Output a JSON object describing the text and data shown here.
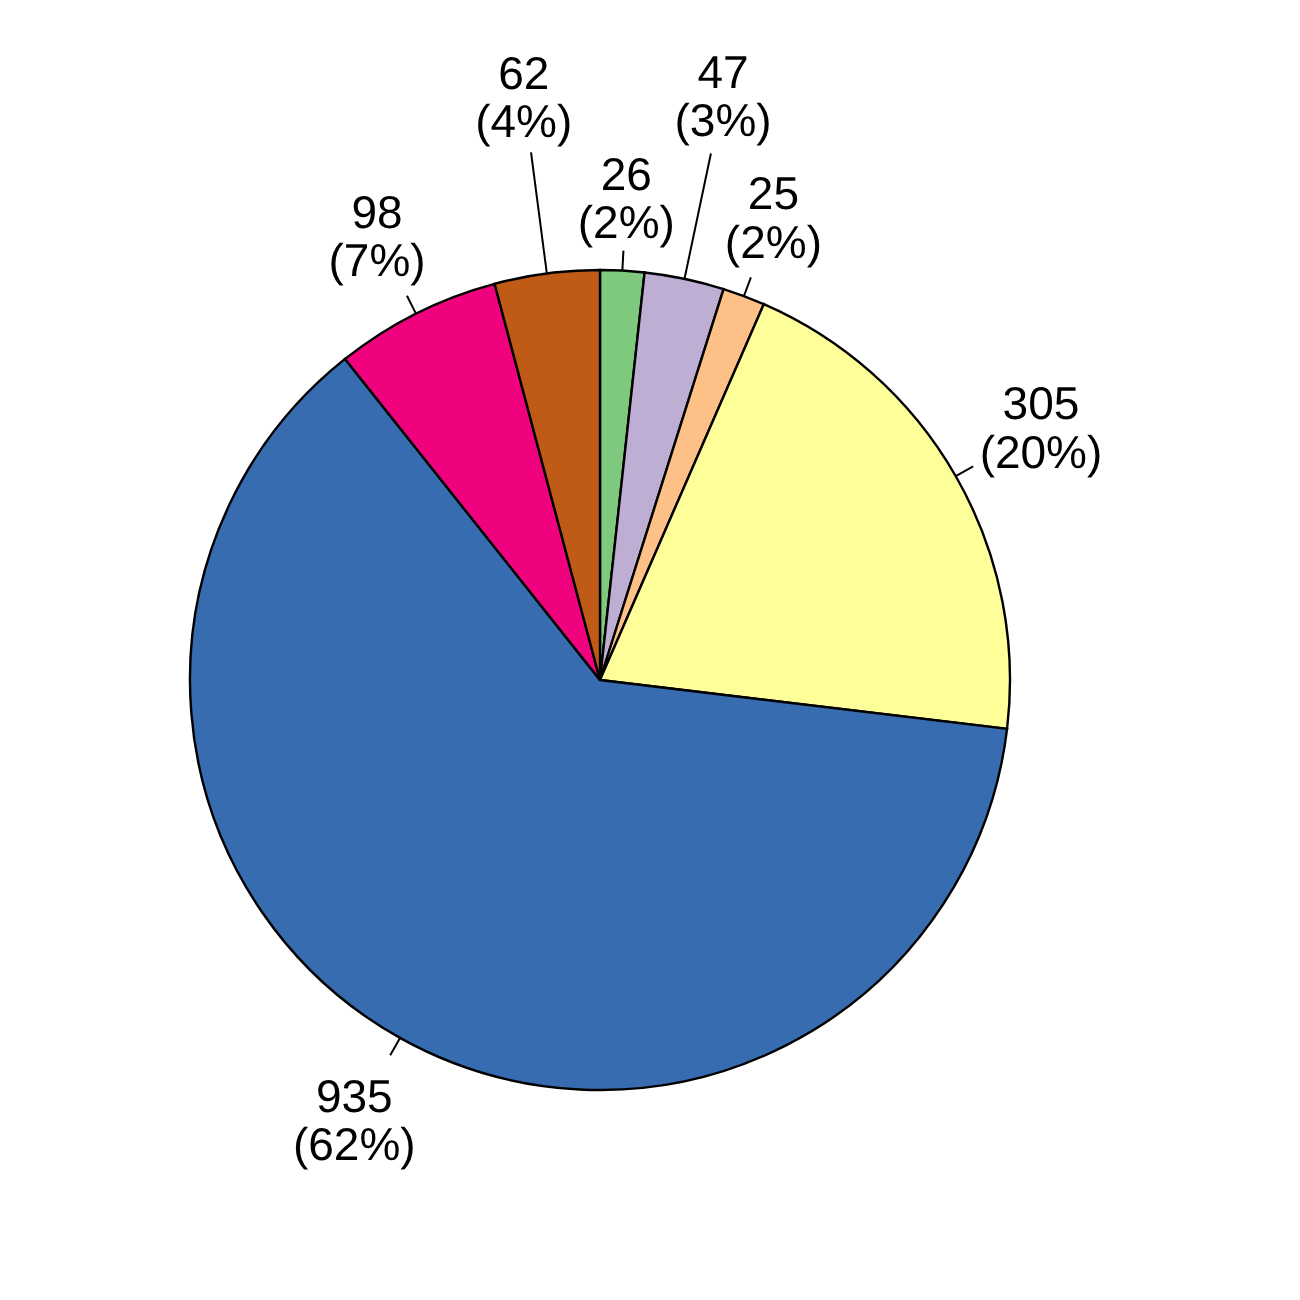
{
  "chart_data": {
    "type": "pie",
    "categories": [
      null,
      null,
      null,
      null,
      null,
      null,
      null
    ],
    "values": [
      26,
      47,
      25,
      305,
      935,
      98,
      62
    ],
    "colors": [
      "#7fc97f",
      "#beaed4",
      "#fdc086",
      "#ffff99",
      "#386cb0",
      "#f0027f",
      "#bf5b17"
    ],
    "value_labels": [
      "26 (2%)",
      "47 (3%)",
      "25 (2%)",
      "305 (20%)",
      "935 (62%)",
      "98 (7%)",
      "62 (4%)"
    ]
  }
}
